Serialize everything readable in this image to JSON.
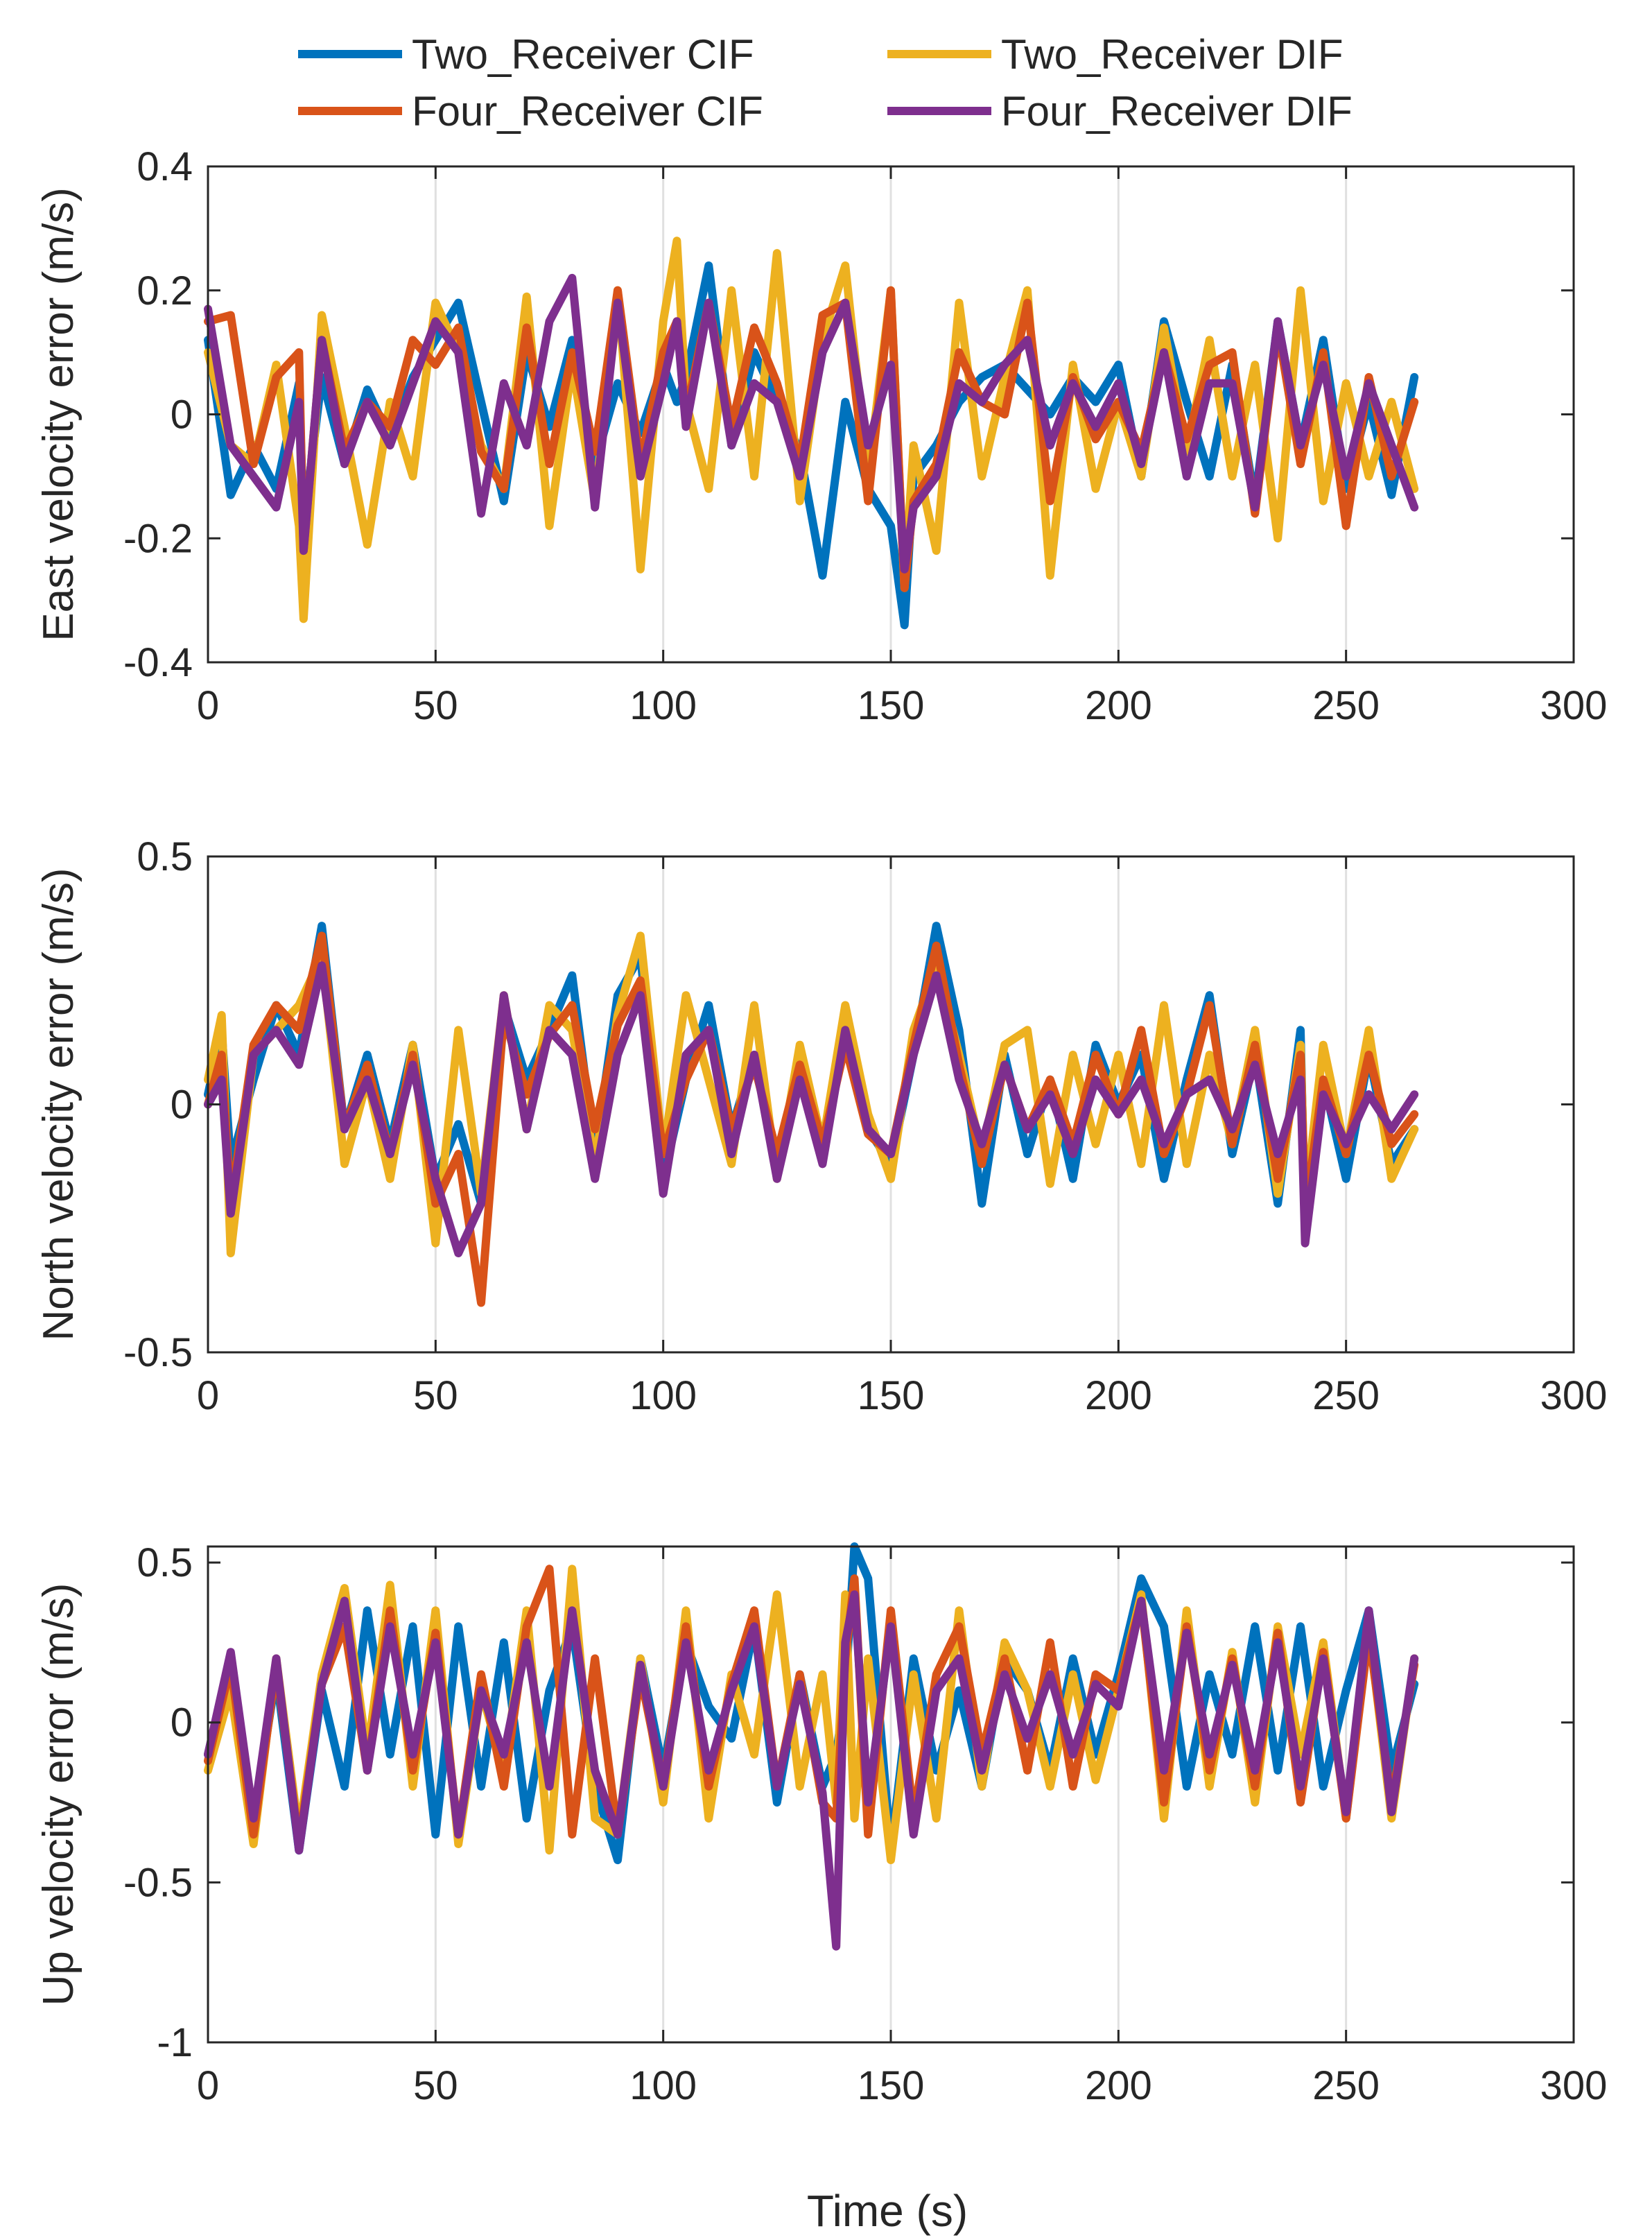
{
  "figure": {
    "xlabel": "Time (s)"
  },
  "legend": [
    {
      "name": "Two_Receiver CIF",
      "color": "#0072BD"
    },
    {
      "name": "Two_Receiver DIF",
      "color": "#EDB120"
    },
    {
      "name": "Four_Receiver CIF",
      "color": "#D95319"
    },
    {
      "name": "Four_Receiver DIF",
      "color": "#7E2F8E"
    }
  ],
  "chart_data": [
    {
      "type": "line",
      "title": "",
      "xlabel": "",
      "ylabel": "East velocity error (m/s)",
      "xlim": [
        0,
        300
      ],
      "ylim": [
        -0.4,
        0.4
      ],
      "xticks": [
        "0",
        "50",
        "100",
        "150",
        "200",
        "250",
        "300"
      ],
      "yticks": [
        "-0.4",
        "-0.2",
        "0",
        "0.2",
        "0.4"
      ],
      "grid": "vertical",
      "x": [
        0,
        5,
        10,
        15,
        20,
        21,
        25,
        30,
        35,
        40,
        45,
        50,
        55,
        60,
        65,
        70,
        75,
        80,
        85,
        90,
        95,
        100,
        103,
        105,
        110,
        115,
        120,
        125,
        130,
        135,
        140,
        145,
        150,
        153,
        155,
        160,
        165,
        170,
        175,
        180,
        185,
        190,
        195,
        200,
        205,
        210,
        215,
        220,
        225,
        230,
        235,
        240,
        245,
        250,
        255,
        260,
        265
      ],
      "series": [
        {
          "name": "Two_Receiver CIF",
          "color": "#0072BD",
          "values": [
            0.12,
            -0.13,
            -0.05,
            -0.12,
            0.05,
            -0.18,
            0.06,
            -0.08,
            0.04,
            -0.04,
            0.06,
            0.12,
            0.18,
            0.02,
            -0.14,
            0.1,
            -0.02,
            0.12,
            -0.08,
            0.05,
            -0.03,
            0.08,
            0.02,
            0.06,
            0.24,
            -0.05,
            0.1,
            0.02,
            -0.06,
            -0.26,
            0.02,
            -0.12,
            -0.18,
            -0.34,
            -0.1,
            -0.05,
            0.02,
            0.06,
            0.08,
            0.04,
            0.0,
            0.06,
            0.02,
            0.08,
            -0.1,
            0.15,
            0.02,
            -0.1,
            0.08,
            -0.14,
            0.15,
            -0.05,
            0.12,
            -0.12,
            0.02,
            -0.13,
            0.06
          ]
        },
        {
          "name": "Two_Receiver DIF",
          "color": "#EDB120",
          "values": [
            0.1,
            -0.05,
            -0.08,
            0.08,
            -0.18,
            -0.33,
            0.16,
            -0.02,
            -0.21,
            0.02,
            -0.1,
            0.18,
            0.1,
            -0.05,
            -0.12,
            0.19,
            -0.18,
            0.08,
            -0.14,
            0.2,
            -0.25,
            0.15,
            0.28,
            0.02,
            -0.12,
            0.2,
            -0.1,
            0.26,
            -0.14,
            0.12,
            0.24,
            -0.1,
            0.2,
            -0.28,
            -0.05,
            -0.22,
            0.18,
            -0.1,
            0.06,
            0.2,
            -0.26,
            0.08,
            -0.12,
            0.02,
            -0.1,
            0.14,
            -0.06,
            0.12,
            -0.1,
            0.08,
            -0.2,
            0.2,
            -0.14,
            0.05,
            -0.1,
            0.02,
            -0.12
          ]
        },
        {
          "name": "Four_Receiver CIF",
          "color": "#D95319",
          "values": [
            0.15,
            0.16,
            -0.08,
            0.06,
            0.1,
            -0.22,
            0.12,
            -0.06,
            0.02,
            -0.02,
            0.12,
            0.08,
            0.14,
            -0.06,
            -0.12,
            0.14,
            -0.08,
            0.1,
            -0.06,
            0.2,
            -0.08,
            0.1,
            0.15,
            0.0,
            0.18,
            -0.02,
            0.14,
            0.05,
            -0.08,
            0.16,
            0.18,
            -0.14,
            0.2,
            -0.28,
            -0.14,
            -0.08,
            0.1,
            0.02,
            0.0,
            0.18,
            -0.14,
            0.06,
            -0.04,
            0.02,
            -0.06,
            0.1,
            -0.04,
            0.08,
            0.1,
            -0.16,
            0.14,
            -0.08,
            0.1,
            -0.18,
            0.06,
            -0.1,
            0.02
          ]
        },
        {
          "name": "Four_Receiver DIF",
          "color": "#7E2F8E",
          "values": [
            0.17,
            -0.05,
            -0.1,
            -0.15,
            0.02,
            -0.22,
            0.12,
            -0.08,
            0.02,
            -0.05,
            0.05,
            0.15,
            0.1,
            -0.16,
            0.05,
            -0.05,
            0.15,
            0.22,
            -0.15,
            0.18,
            -0.1,
            0.05,
            0.15,
            -0.02,
            0.18,
            -0.05,
            0.05,
            0.02,
            -0.1,
            0.1,
            0.18,
            -0.05,
            0.08,
            -0.25,
            -0.15,
            -0.1,
            0.05,
            0.02,
            0.08,
            0.12,
            -0.05,
            0.05,
            -0.02,
            0.05,
            -0.08,
            0.1,
            -0.1,
            0.05,
            0.05,
            -0.15,
            0.15,
            -0.05,
            0.08,
            -0.1,
            0.05,
            -0.05,
            -0.15
          ]
        }
      ]
    },
    {
      "type": "line",
      "title": "",
      "xlabel": "",
      "ylabel": "North velocity error (m/s)",
      "xlim": [
        0,
        300
      ],
      "ylim": [
        -0.5,
        0.5
      ],
      "xticks": [
        "0",
        "50",
        "100",
        "150",
        "200",
        "250",
        "300"
      ],
      "yticks": [
        "-0.5",
        "0",
        "0.5"
      ],
      "grid": "vertical",
      "x": [
        0,
        3,
        5,
        10,
        15,
        20,
        25,
        30,
        35,
        40,
        45,
        50,
        55,
        60,
        65,
        70,
        75,
        80,
        85,
        90,
        95,
        100,
        105,
        110,
        115,
        120,
        125,
        130,
        135,
        140,
        145,
        150,
        155,
        160,
        165,
        170,
        175,
        180,
        185,
        190,
        195,
        200,
        205,
        210,
        215,
        220,
        225,
        230,
        235,
        240,
        241,
        245,
        250,
        255,
        260,
        265
      ],
      "series": [
        {
          "name": "Two_Receiver CIF",
          "color": "#0072BD",
          "values": [
            0.02,
            0.15,
            -0.12,
            0.05,
            0.2,
            0.1,
            0.36,
            -0.05,
            0.1,
            -0.08,
            0.12,
            -0.15,
            -0.04,
            -0.2,
            0.2,
            0.05,
            0.15,
            0.26,
            -0.1,
            0.22,
            0.3,
            -0.15,
            0.05,
            0.2,
            -0.05,
            0.1,
            -0.12,
            0.05,
            -0.1,
            0.15,
            -0.05,
            -0.12,
            0.1,
            0.36,
            0.15,
            -0.2,
            0.1,
            -0.1,
            0.05,
            -0.15,
            0.12,
            0.0,
            0.1,
            -0.15,
            0.05,
            0.22,
            -0.1,
            0.1,
            -0.2,
            0.15,
            -0.25,
            0.05,
            -0.15,
            0.1,
            -0.12,
            -0.05
          ]
        },
        {
          "name": "Two_Receiver DIF",
          "color": "#EDB120",
          "values": [
            0.05,
            0.18,
            -0.3,
            0.1,
            0.15,
            0.2,
            0.3,
            -0.12,
            0.05,
            -0.15,
            0.12,
            -0.28,
            0.15,
            -0.18,
            0.22,
            -0.05,
            0.2,
            0.15,
            -0.12,
            0.18,
            0.34,
            -0.1,
            0.22,
            0.05,
            -0.12,
            0.2,
            -0.15,
            0.12,
            -0.08,
            0.2,
            -0.02,
            -0.15,
            0.15,
            0.28,
            0.1,
            -0.1,
            0.12,
            0.15,
            -0.16,
            0.1,
            -0.08,
            0.1,
            -0.12,
            0.2,
            -0.12,
            0.1,
            -0.08,
            0.15,
            -0.18,
            0.12,
            -0.2,
            0.12,
            -0.1,
            0.15,
            -0.15,
            -0.05
          ]
        },
        {
          "name": "Four_Receiver CIF",
          "color": "#D95319",
          "values": [
            0.0,
            0.1,
            -0.2,
            0.12,
            0.2,
            0.15,
            0.34,
            -0.05,
            0.08,
            -0.1,
            0.1,
            -0.2,
            -0.1,
            -0.4,
            0.18,
            0.02,
            0.14,
            0.2,
            -0.05,
            0.16,
            0.25,
            -0.1,
            0.05,
            0.15,
            -0.05,
            0.08,
            -0.1,
            0.08,
            -0.08,
            0.12,
            -0.06,
            -0.1,
            0.12,
            0.32,
            0.08,
            -0.12,
            0.08,
            -0.05,
            0.05,
            -0.08,
            0.1,
            -0.02,
            0.15,
            -0.1,
            0.02,
            0.2,
            -0.08,
            0.12,
            -0.15,
            0.1,
            -0.22,
            0.05,
            -0.1,
            0.1,
            -0.08,
            -0.02
          ]
        },
        {
          "name": "Four_Receiver DIF",
          "color": "#7E2F8E",
          "values": [
            0.0,
            0.05,
            -0.22,
            0.1,
            0.15,
            0.08,
            0.28,
            -0.05,
            0.05,
            -0.1,
            0.08,
            -0.15,
            -0.3,
            -0.2,
            0.22,
            -0.05,
            0.15,
            0.1,
            -0.15,
            0.1,
            0.22,
            -0.18,
            0.1,
            0.15,
            -0.1,
            0.1,
            -0.15,
            0.05,
            -0.12,
            0.15,
            -0.05,
            -0.1,
            0.1,
            0.26,
            0.05,
            -0.08,
            0.08,
            -0.05,
            0.02,
            -0.1,
            0.05,
            -0.02,
            0.05,
            -0.08,
            0.02,
            0.05,
            -0.05,
            0.08,
            -0.1,
            0.05,
            -0.28,
            0.02,
            -0.08,
            0.02,
            -0.05,
            0.02
          ]
        }
      ]
    },
    {
      "type": "line",
      "title": "",
      "xlabel": "Time (s)",
      "ylabel": "Up velocity error (m/s)",
      "xlim": [
        0,
        300
      ],
      "ylim": [
        -1,
        0.55
      ],
      "xticks": [
        "0",
        "50",
        "100",
        "150",
        "200",
        "250",
        "300"
      ],
      "yticks": [
        "-1",
        "-0.5",
        "0",
        "0.5"
      ],
      "grid": "vertical",
      "x": [
        0,
        5,
        10,
        15,
        20,
        25,
        30,
        35,
        40,
        45,
        50,
        55,
        60,
        65,
        70,
        75,
        80,
        85,
        90,
        95,
        100,
        105,
        110,
        115,
        120,
        125,
        130,
        135,
        138,
        140,
        142,
        145,
        150,
        155,
        160,
        165,
        170,
        175,
        180,
        185,
        190,
        195,
        200,
        205,
        210,
        215,
        220,
        225,
        230,
        235,
        240,
        245,
        250,
        255,
        260,
        265
      ],
      "series": [
        {
          "name": "Two_Receiver CIF",
          "color": "#0072BD",
          "values": [
            -0.1,
            0.2,
            -0.3,
            0.15,
            -0.4,
            0.1,
            -0.2,
            0.35,
            -0.1,
            0.3,
            -0.35,
            0.3,
            -0.2,
            0.25,
            -0.3,
            0.1,
            0.3,
            -0.2,
            -0.43,
            0.2,
            -0.15,
            0.25,
            0.05,
            -0.05,
            0.3,
            -0.25,
            0.15,
            -0.2,
            -0.1,
            0.1,
            0.55,
            0.45,
            -0.4,
            0.2,
            -0.15,
            0.1,
            -0.2,
            0.2,
            0.1,
            -0.15,
            0.2,
            -0.1,
            0.15,
            0.45,
            0.3,
            -0.2,
            0.15,
            -0.1,
            0.3,
            -0.15,
            0.3,
            -0.2,
            0.1,
            0.35,
            -0.15,
            0.12
          ]
        },
        {
          "name": "Two_Receiver DIF",
          "color": "#EDB120",
          "values": [
            -0.15,
            0.1,
            -0.38,
            0.2,
            -0.35,
            0.15,
            0.42,
            -0.1,
            0.43,
            -0.2,
            0.35,
            -0.38,
            0.1,
            -0.15,
            0.35,
            -0.4,
            0.48,
            -0.3,
            -0.35,
            0.2,
            -0.25,
            0.35,
            -0.3,
            0.15,
            -0.1,
            0.4,
            -0.2,
            0.15,
            -0.25,
            0.4,
            -0.3,
            0.2,
            -0.43,
            0.15,
            -0.3,
            0.35,
            -0.2,
            0.25,
            0.1,
            -0.2,
            0.15,
            -0.18,
            0.1,
            0.4,
            -0.3,
            0.35,
            -0.2,
            0.22,
            -0.25,
            0.3,
            -0.1,
            0.25,
            -0.3,
            0.3,
            -0.3,
            0.2
          ]
        },
        {
          "name": "Four_Receiver CIF",
          "color": "#D95319",
          "values": [
            -0.12,
            0.18,
            -0.35,
            0.18,
            -0.38,
            0.12,
            0.3,
            -0.15,
            0.35,
            -0.15,
            0.28,
            -0.35,
            0.15,
            -0.2,
            0.3,
            0.48,
            -0.35,
            0.2,
            -0.35,
            0.15,
            -0.2,
            0.3,
            -0.2,
            0.12,
            0.35,
            -0.2,
            0.15,
            -0.25,
            -0.3,
            0.2,
            0.45,
            -0.35,
            0.35,
            -0.3,
            0.15,
            0.3,
            -0.1,
            0.2,
            -0.15,
            0.25,
            -0.2,
            0.15,
            0.1,
            0.38,
            -0.25,
            0.3,
            -0.15,
            0.2,
            -0.2,
            0.28,
            -0.25,
            0.22,
            -0.3,
            0.28,
            -0.25,
            0.18
          ]
        },
        {
          "name": "Four_Receiver DIF",
          "color": "#7E2F8E",
          "values": [
            -0.1,
            0.22,
            -0.3,
            0.2,
            -0.4,
            0.12,
            0.38,
            -0.15,
            0.3,
            -0.1,
            0.25,
            -0.35,
            0.1,
            -0.1,
            0.25,
            -0.2,
            0.35,
            -0.15,
            -0.35,
            0.18,
            -0.2,
            0.25,
            -0.15,
            0.1,
            0.3,
            -0.2,
            0.12,
            -0.22,
            -0.7,
            0.25,
            0.4,
            -0.25,
            0.3,
            -0.35,
            0.1,
            0.2,
            -0.15,
            0.15,
            -0.05,
            0.15,
            -0.1,
            0.12,
            0.05,
            0.38,
            -0.15,
            0.28,
            -0.1,
            0.18,
            -0.15,
            0.25,
            -0.2,
            0.2,
            -0.28,
            0.35,
            -0.28,
            0.2
          ]
        }
      ]
    }
  ]
}
